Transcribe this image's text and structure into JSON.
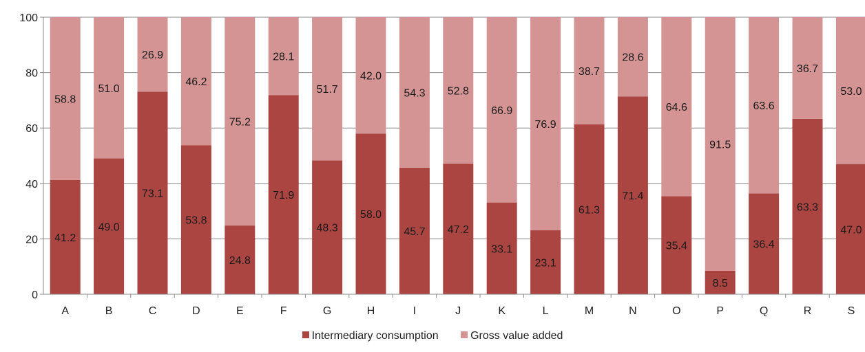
{
  "chart_data": {
    "type": "bar",
    "stacked": true,
    "categories": [
      "A",
      "B",
      "C",
      "D",
      "E",
      "F",
      "G",
      "H",
      "I",
      "J",
      "K",
      "L",
      "M",
      "N",
      "O",
      "P",
      "Q",
      "R",
      "S"
    ],
    "series": [
      {
        "name": "Intermediary consumption",
        "color": "#aa4542",
        "values": [
          41.2,
          49.0,
          73.1,
          53.8,
          24.8,
          71.9,
          48.3,
          58.0,
          45.7,
          47.2,
          33.1,
          23.1,
          61.3,
          71.4,
          35.4,
          8.5,
          36.4,
          63.3,
          47.0
        ]
      },
      {
        "name": "Gross value added",
        "color": "#d49494",
        "values": [
          58.8,
          51.0,
          26.9,
          46.2,
          75.2,
          28.1,
          51.7,
          42.0,
          54.3,
          52.8,
          66.9,
          76.9,
          38.7,
          28.6,
          64.6,
          91.5,
          63.6,
          36.7,
          53.0
        ]
      }
    ],
    "ylim": [
      0,
      100
    ],
    "yticks": [
      0,
      20,
      40,
      60,
      80,
      100
    ],
    "grid": "horizontal",
    "legend": "bottom-center",
    "title": "",
    "xlabel": "",
    "ylabel": ""
  }
}
